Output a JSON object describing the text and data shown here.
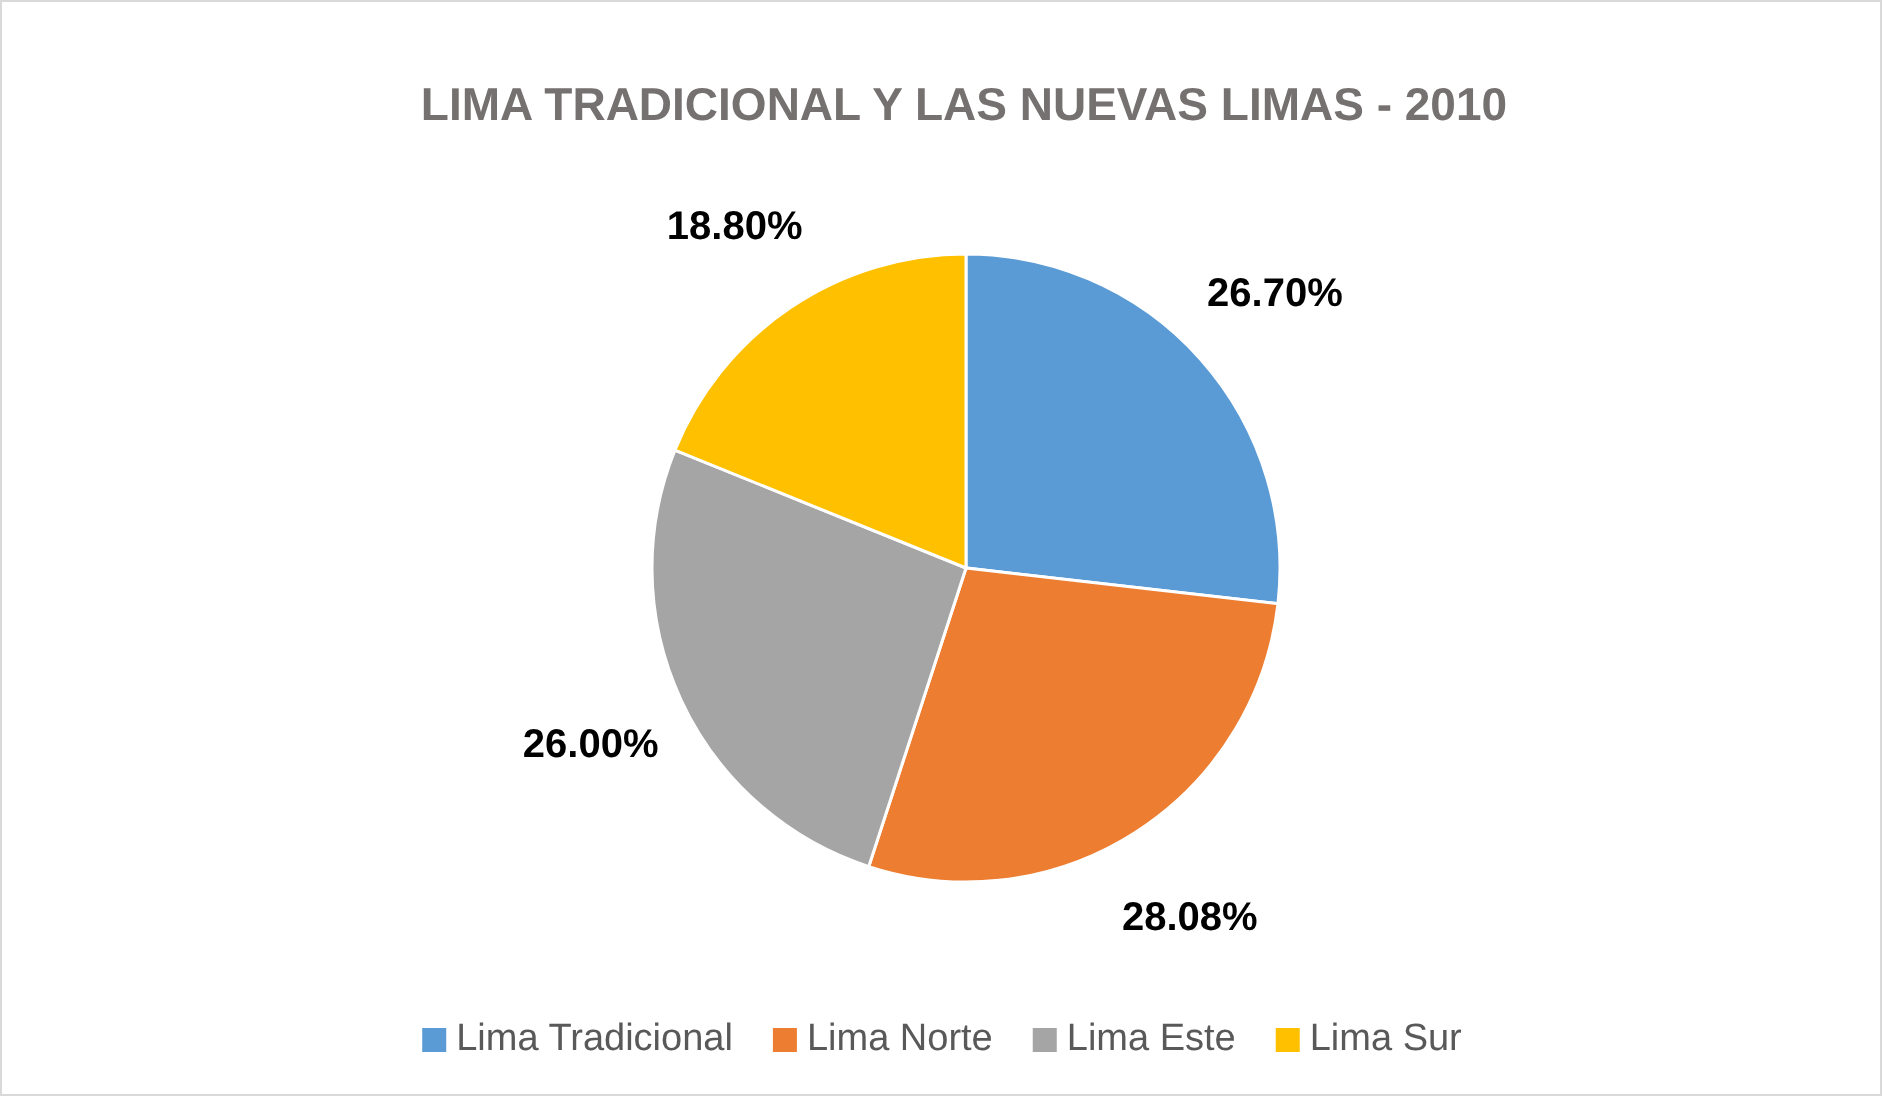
{
  "chart_data": {
    "type": "pie",
    "title": "LIMA TRADICIONAL Y LAS NUEVAS LIMAS - 2010",
    "categories": [
      "Lima Tradicional",
      "Lima Norte",
      "Lima Este",
      "Lima Sur"
    ],
    "values": [
      26.7,
      28.08,
      26.0,
      18.8
    ],
    "value_labels": [
      "26.70%",
      "28.08%",
      "26.00%",
      "18.80%"
    ],
    "colors": [
      "#5b9bd5",
      "#ed7d31",
      "#a5a5a5",
      "#ffc000"
    ],
    "legend": "bottom"
  }
}
